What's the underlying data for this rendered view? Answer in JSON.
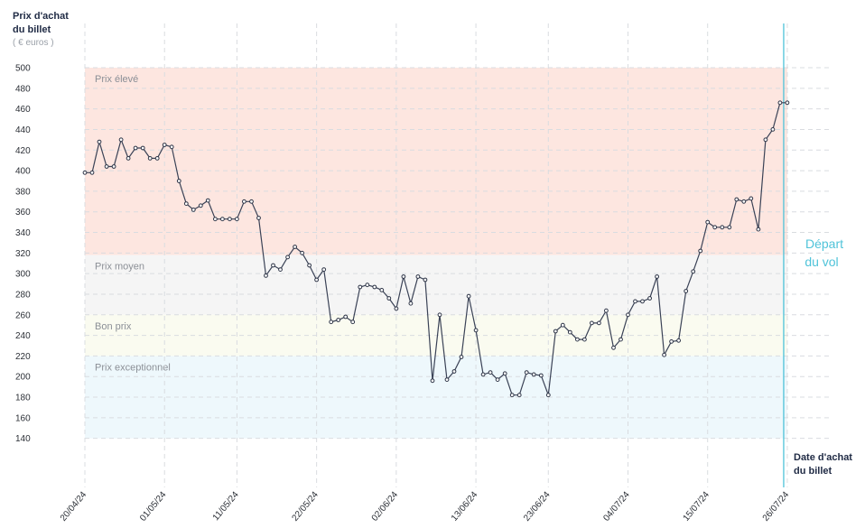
{
  "chart_data": {
    "type": "line",
    "ylabel_line1": "Prix d'achat",
    "ylabel_line2": "du billet",
    "yunit": "( € euros )",
    "xlabel_line1": "Date d'achat",
    "xlabel_line2": "du billet",
    "ylim": [
      130,
      505
    ],
    "yticks": [
      140,
      160,
      180,
      200,
      220,
      240,
      260,
      280,
      300,
      320,
      340,
      360,
      380,
      400,
      420,
      440,
      460,
      480,
      500
    ],
    "x_start": "2024-04-20",
    "xticks": [
      {
        "label": "20/04/24",
        "day": 0
      },
      {
        "label": "01/05/24",
        "day": 11
      },
      {
        "label": "11/05/24",
        "day": 21
      },
      {
        "label": "22/05/24",
        "day": 32
      },
      {
        "label": "02/06/24",
        "day": 43
      },
      {
        "label": "13/06/24",
        "day": 54
      },
      {
        "label": "23/06/24",
        "day": 64
      },
      {
        "label": "04/07/24",
        "day": 75
      },
      {
        "label": "15/07/24",
        "day": 86
      },
      {
        "label": "26/07/24",
        "day": 97
      }
    ],
    "bands": [
      {
        "label": "Prix élevé",
        "from": 318,
        "to": 500,
        "color": "#fde6e0"
      },
      {
        "label": "Prix moyen",
        "from": 260,
        "to": 318,
        "color": "#f5f5f5"
      },
      {
        "label": "Bon prix",
        "from": 220,
        "to": 260,
        "color": "#fafbf0"
      },
      {
        "label": "Prix exceptionnel",
        "from": 140,
        "to": 220,
        "color": "#eef8fc"
      }
    ],
    "departure_label_line1": "Départ",
    "departure_label_line2": "du vol",
    "departure_day": 97,
    "grid": true,
    "values": [
      398,
      398,
      428,
      404,
      404,
      430,
      412,
      422,
      422,
      412,
      412,
      425,
      423,
      390,
      368,
      362,
      366,
      371,
      353,
      353,
      353,
      353,
      370,
      370,
      354,
      298,
      308,
      304,
      316,
      326,
      320,
      308,
      294,
      304,
      253,
      255,
      258,
      253,
      287,
      289,
      287,
      284,
      276,
      266,
      297,
      271,
      297,
      294,
      196,
      260,
      197,
      205,
      219,
      278,
      245,
      202,
      204,
      197,
      203,
      182,
      182,
      204,
      202,
      201,
      182,
      244,
      250,
      243,
      236,
      236,
      252,
      252,
      264,
      228,
      236,
      260,
      273,
      273,
      276,
      297,
      221,
      234,
      235,
      283,
      302,
      322,
      350,
      345,
      345,
      345,
      372,
      370,
      373,
      343,
      430,
      440,
      466,
      466
    ]
  }
}
